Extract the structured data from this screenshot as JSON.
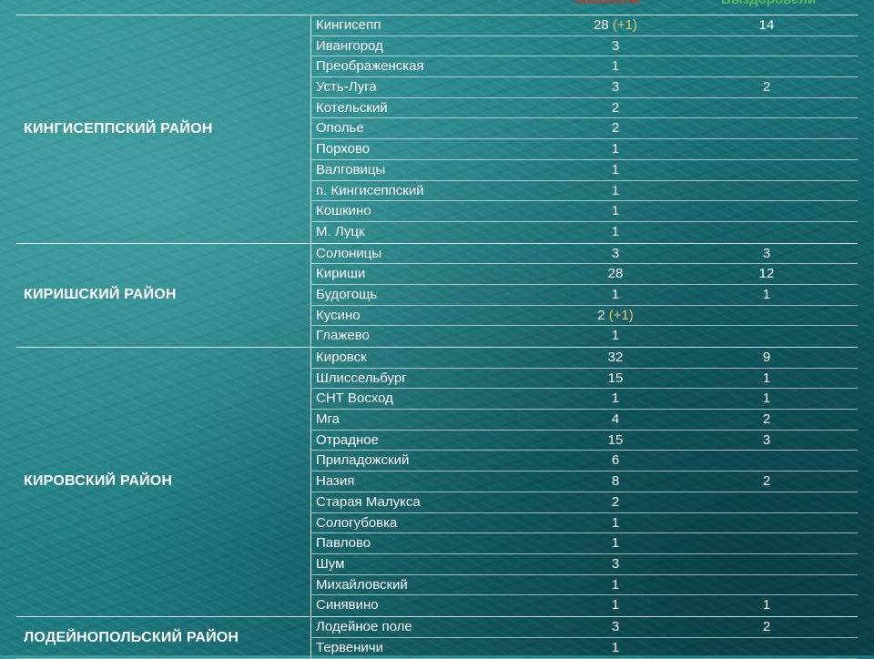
{
  "headers": {
    "sick": "Заболели",
    "recovered": "Выздоровели"
  },
  "groups": [
    {
      "district": "КИНГИСЕППСКИЙ РАЙОН",
      "rows": [
        {
          "place": "Кингисепп",
          "sick": "28",
          "delta": "(+1)",
          "recovered": "14"
        },
        {
          "place": "Ивангород",
          "sick": "3",
          "delta": "",
          "recovered": ""
        },
        {
          "place": "Преображенская",
          "sick": "1",
          "delta": "",
          "recovered": ""
        },
        {
          "place": "Усть-Луга",
          "sick": "3",
          "delta": "",
          "recovered": "2"
        },
        {
          "place": "Котельский",
          "sick": "2",
          "delta": "",
          "recovered": ""
        },
        {
          "place": "Ополье",
          "sick": "2",
          "delta": "",
          "recovered": ""
        },
        {
          "place": "Порхово",
          "sick": "1",
          "delta": "",
          "recovered": ""
        },
        {
          "place": "Валговицы",
          "sick": "1",
          "delta": "",
          "recovered": ""
        },
        {
          "place": "п. Кингисеппский",
          "sick": "1",
          "delta": "",
          "recovered": ""
        },
        {
          "place": "Кошкино",
          "sick": "1",
          "delta": "",
          "recovered": ""
        },
        {
          "place": "М. Луцк",
          "sick": "1",
          "delta": "",
          "recovered": ""
        }
      ]
    },
    {
      "district": "КИРИШСКИЙ РАЙОН",
      "rows": [
        {
          "place": "Солоницы",
          "sick": "3",
          "delta": "",
          "recovered": "3"
        },
        {
          "place": "Кириши",
          "sick": "28",
          "delta": "",
          "recovered": "12"
        },
        {
          "place": "Будогощь",
          "sick": "1",
          "delta": "",
          "recovered": "1"
        },
        {
          "place": "Кусино",
          "sick": "2",
          "delta": "(+1)",
          "recovered": ""
        },
        {
          "place": "Глажево",
          "sick": "1",
          "delta": "",
          "recovered": ""
        }
      ]
    },
    {
      "district": "КИРОВСКИЙ РАЙОН",
      "rows": [
        {
          "place": "Кировск",
          "sick": "32",
          "delta": "",
          "recovered": "9"
        },
        {
          "place": "Шлиссельбург",
          "sick": "15",
          "delta": "",
          "recovered": "1"
        },
        {
          "place": "СНТ Восход",
          "sick": "1",
          "delta": "",
          "recovered": "1"
        },
        {
          "place": "Мга",
          "sick": "4",
          "delta": "",
          "recovered": "2"
        },
        {
          "place": "Отрадное",
          "sick": "15",
          "delta": "",
          "recovered": "3"
        },
        {
          "place": "Приладожский",
          "sick": "6",
          "delta": "",
          "recovered": ""
        },
        {
          "place": "Назия",
          "sick": "8",
          "delta": "",
          "recovered": "2"
        },
        {
          "place": "Старая Малукса",
          "sick": "2",
          "delta": "",
          "recovered": ""
        },
        {
          "place": "Сологубовка",
          "sick": "1",
          "delta": "",
          "recovered": ""
        },
        {
          "place": "Павлово",
          "sick": "1",
          "delta": "",
          "recovered": ""
        },
        {
          "place": "Шум",
          "sick": "3",
          "delta": "",
          "recovered": ""
        },
        {
          "place": "Михайловский",
          "sick": "1",
          "delta": "",
          "recovered": ""
        },
        {
          "place": "Синявино",
          "sick": "1",
          "delta": "",
          "recovered": "1"
        }
      ]
    },
    {
      "district": "ЛОДЕЙНОПОЛЬСКИЙ РАЙОН",
      "rows": [
        {
          "place": "Лодейное поле",
          "sick": "3",
          "delta": "",
          "recovered": "2"
        },
        {
          "place": "Тервеничи",
          "sick": "1",
          "delta": "",
          "recovered": ""
        }
      ]
    }
  ],
  "colors": {
    "sick_header": "#c0392b",
    "recovered_header": "#5cb85c",
    "delta": "#e8c36a"
  }
}
